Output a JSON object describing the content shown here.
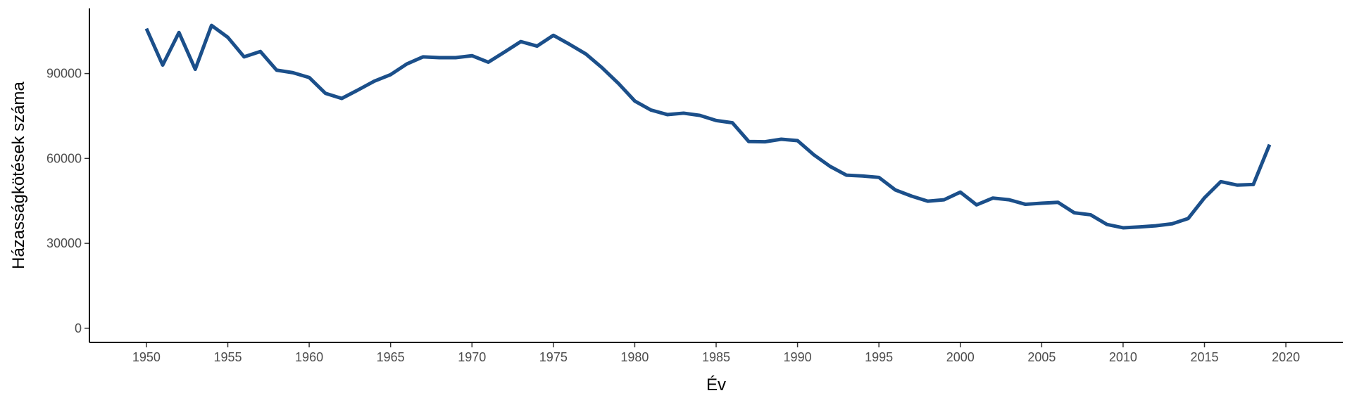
{
  "chart_data": {
    "type": "line",
    "title": "",
    "xlabel": "Év",
    "ylabel": "Házasságkötések száma",
    "xlim": [
      1946.5,
      2023.5
    ],
    "ylim": [
      -5000,
      113000
    ],
    "x_ticks": [
      1950,
      1955,
      1960,
      1965,
      1970,
      1975,
      1980,
      1985,
      1990,
      1995,
      2000,
      2005,
      2010,
      2015,
      2020
    ],
    "y_ticks": [
      0,
      30000,
      60000,
      90000
    ],
    "grid": false,
    "legend": "none",
    "series": [
      {
        "color": "#1b4f8a",
        "x": [
          1950,
          1951,
          1952,
          1953,
          1954,
          1955,
          1956,
          1957,
          1958,
          1959,
          1960,
          1961,
          1962,
          1963,
          1964,
          1965,
          1966,
          1967,
          1968,
          1969,
          1970,
          1971,
          1972,
          1973,
          1974,
          1975,
          1976,
          1977,
          1978,
          1979,
          1980,
          1981,
          1982,
          1983,
          1984,
          1985,
          1986,
          1987,
          1988,
          1989,
          1990,
          1991,
          1992,
          1993,
          1994,
          1995,
          1996,
          1997,
          1998,
          1999,
          2000,
          2001,
          2002,
          2003,
          2004,
          2005,
          2006,
          2007,
          2008,
          2009,
          2010,
          2011,
          2012,
          2013,
          2014,
          2015,
          2016,
          2017,
          2018,
          2019
        ],
        "values": [
          105900,
          93000,
          104500,
          91500,
          107000,
          102800,
          95900,
          97800,
          91200,
          90300,
          88600,
          83000,
          81200,
          84200,
          87300,
          89600,
          93400,
          95900,
          95600,
          95600,
          96300,
          94000,
          97600,
          101300,
          99700,
          103500,
          100300,
          96900,
          92000,
          86500,
          80300,
          77100,
          75500,
          76000,
          75200,
          73400,
          72600,
          66000,
          65900,
          66800,
          66300,
          61300,
          57200,
          54100,
          53800,
          53300,
          48900,
          46700,
          44900,
          45400,
          48100,
          43600,
          46000,
          45400,
          43800,
          44200,
          44500,
          40800,
          40100,
          36700,
          35500,
          35800,
          36200,
          36900,
          38800,
          46100,
          51800,
          50600,
          50800,
          64900
        ]
      }
    ]
  }
}
